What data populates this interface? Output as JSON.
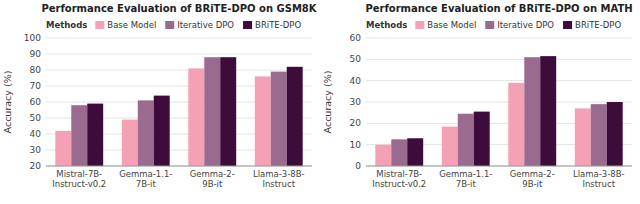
{
  "chart_data": [
    {
      "type": "bar",
      "title": "Performance Evaluation of BRiTE-DPO on GSM8K",
      "categories": [
        "Mistral-7B-\nInstruct-v0.2",
        "Gemma-1.1-\n7B-it",
        "Gemma-2-\n9B-it",
        "Llama-3-8B-\nInstruct"
      ],
      "series": [
        {
          "name": "Base Model",
          "color": "#f4a0b5",
          "values": [
            42,
            49,
            81,
            76
          ]
        },
        {
          "name": "Iterative DPO",
          "color": "#9b6b8f",
          "values": [
            58,
            61,
            88,
            79
          ]
        },
        {
          "name": "BRiTE-DPO",
          "color": "#3d0c3a",
          "values": [
            59,
            64,
            88,
            82
          ]
        }
      ],
      "ylabel": "Accuracy (%)",
      "ylim": [
        20,
        100
      ],
      "yticks": [
        20,
        30,
        40,
        50,
        60,
        70,
        80,
        90,
        100
      ],
      "grid": true,
      "legend": "top-left",
      "legend_title": "Methods"
    },
    {
      "type": "bar",
      "title": "Performance Evaluation of BRiTE-DPO on MATH",
      "categories": [
        "Mistral-7B-\nInstruct-v0.2",
        "Gemma-1.1-\n7B-it",
        "Gemma-2-\n9B-it",
        "Llama-3-8B-\nInstruct"
      ],
      "series": [
        {
          "name": "Base Model",
          "color": "#f4a0b5",
          "values": [
            10,
            18.5,
            39,
            27
          ]
        },
        {
          "name": "Iterative DPO",
          "color": "#9b6b8f",
          "values": [
            12.5,
            24.5,
            51,
            29
          ]
        },
        {
          "name": "BRiTE-DPO",
          "color": "#3d0c3a",
          "values": [
            13,
            25.5,
            51.5,
            30
          ]
        }
      ],
      "ylabel": "Accuracy (%)",
      "ylim": [
        0,
        60
      ],
      "yticks": [
        0,
        10,
        20,
        30,
        40,
        50,
        60
      ],
      "grid": true,
      "legend": "top-left",
      "legend_title": "Methods"
    }
  ]
}
